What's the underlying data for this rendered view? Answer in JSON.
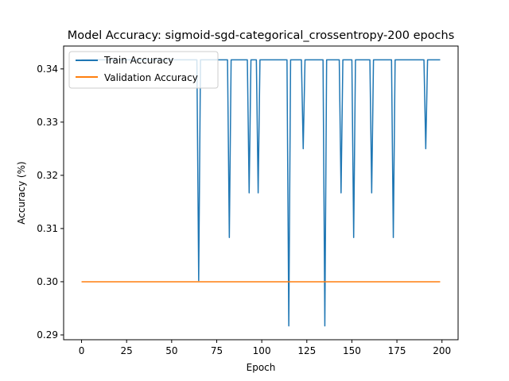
{
  "chart_data": {
    "type": "line",
    "title": "Model Accuracy: sigmoid-sgd-categorical_crossentropy-200 epochs",
    "xlabel": "Epoch",
    "ylabel": "Accuracy (%)",
    "xlim": [
      -9.95,
      208.95
    ],
    "ylim": [
      0.2891,
      0.3443
    ],
    "xticks": [
      0,
      25,
      50,
      75,
      100,
      125,
      150,
      175,
      200
    ],
    "yticks": [
      0.29,
      0.3,
      0.31,
      0.32,
      0.33,
      0.34
    ],
    "ytick_labels": [
      "0.29",
      "0.30",
      "0.31",
      "0.32",
      "0.33",
      "0.34"
    ],
    "grid": false,
    "legend_position": "upper left",
    "colors": {
      "train": "#1f77b4",
      "validation": "#ff7f0e"
    },
    "series": [
      {
        "name": "Train Accuracy",
        "color": "#1f77b4",
        "base_value": 0.3417,
        "n_epochs": 200,
        "dips": [
          [
            65,
            0.3002
          ],
          [
            82,
            0.3083
          ],
          [
            93,
            0.3167
          ],
          [
            98,
            0.3167
          ],
          [
            115,
            0.2917
          ],
          [
            123,
            0.325
          ],
          [
            135,
            0.2917
          ],
          [
            144,
            0.3167
          ],
          [
            151,
            0.3083
          ],
          [
            161,
            0.3167
          ],
          [
            173,
            0.3083
          ],
          [
            191,
            0.325
          ]
        ]
      },
      {
        "name": "Validation Accuracy",
        "color": "#ff7f0e",
        "constant_value": 0.3,
        "n_epochs": 200
      }
    ]
  }
}
